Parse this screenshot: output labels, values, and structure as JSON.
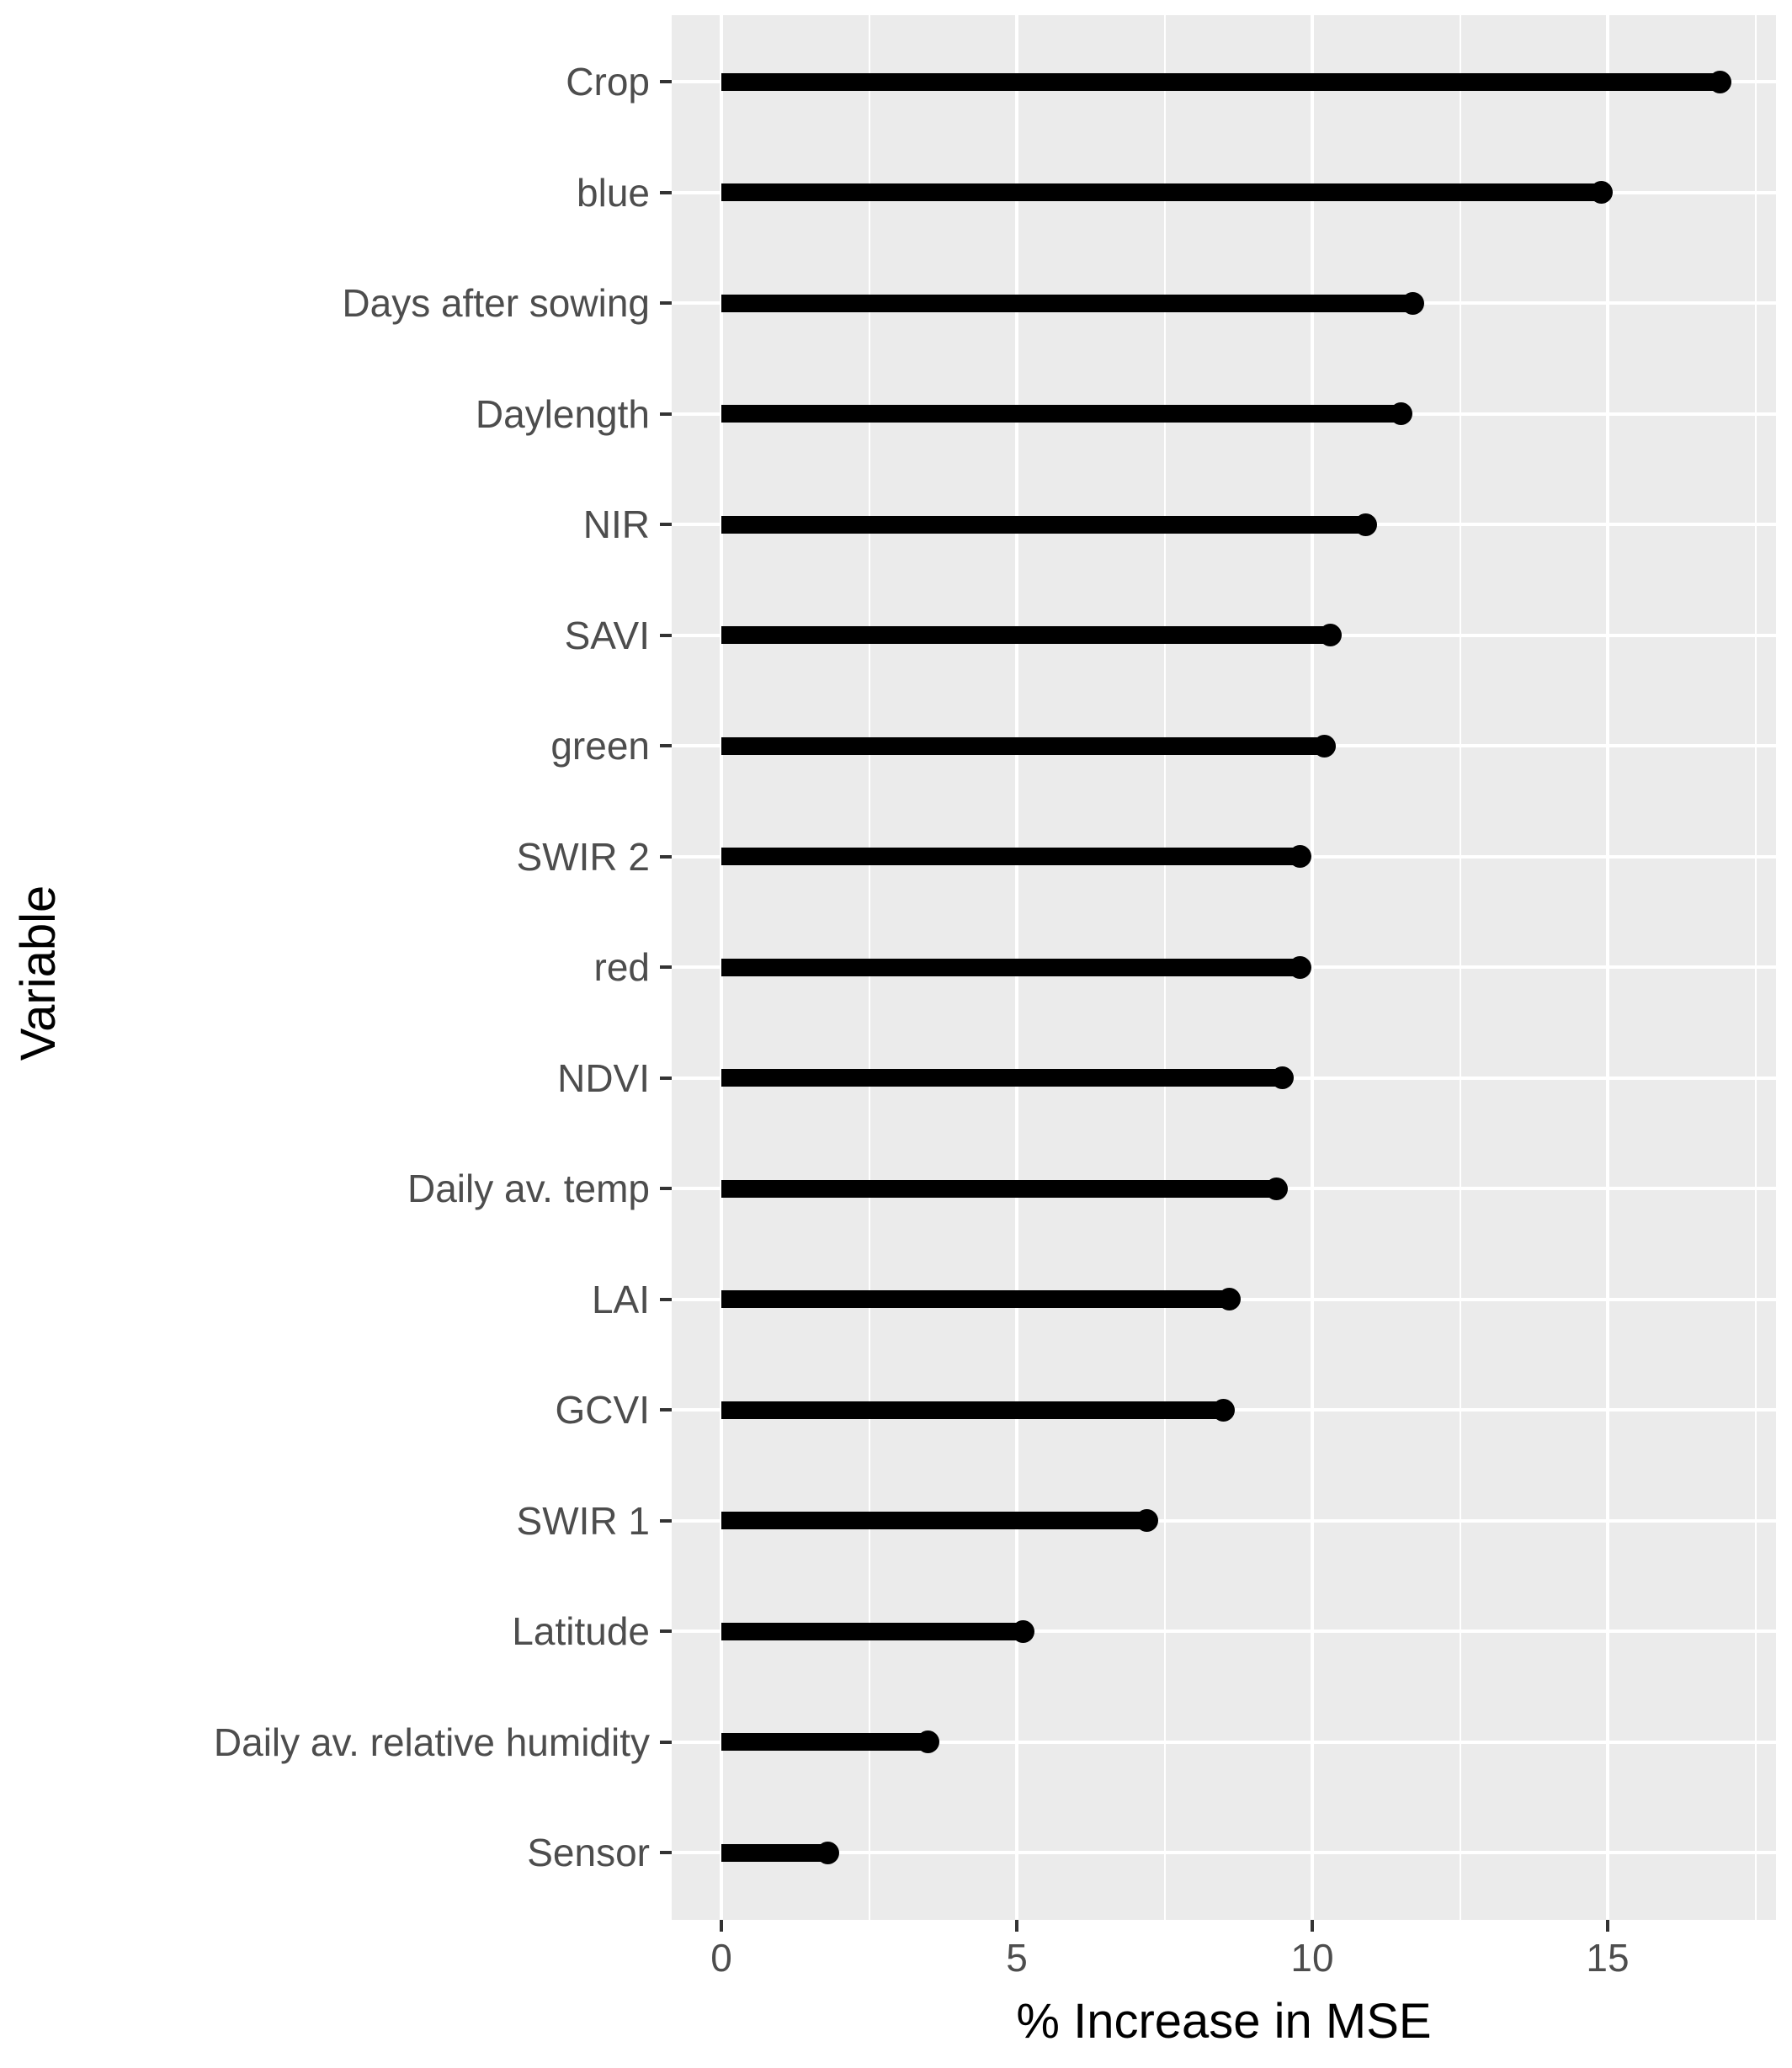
{
  "chart_data": {
    "type": "bar",
    "orientation": "horizontal",
    "title": "",
    "xlabel": "% Increase in MSE",
    "ylabel": "Variable",
    "rows": [
      {
        "label": "Crop",
        "value": 16.9
      },
      {
        "label": "blue",
        "value": 14.9
      },
      {
        "label": "Days after sowing",
        "value": 11.7
      },
      {
        "label": "Daylength",
        "value": 11.5
      },
      {
        "label": "NIR",
        "value": 10.9
      },
      {
        "label": "SAVI",
        "value": 10.3
      },
      {
        "label": "green",
        "value": 10.2
      },
      {
        "label": "SWIR 2",
        "value": 9.8
      },
      {
        "label": "red",
        "value": 9.8
      },
      {
        "label": "NDVI",
        "value": 9.5
      },
      {
        "label": "Daily av. temp",
        "value": 9.4
      },
      {
        "label": "LAI",
        "value": 8.6
      },
      {
        "label": "GCVI",
        "value": 8.5
      },
      {
        "label": "SWIR 1",
        "value": 7.2
      },
      {
        "label": "Latitude",
        "value": 5.1
      },
      {
        "label": "Daily av. relative humidity",
        "value": 3.5
      },
      {
        "label": "Sensor",
        "value": 1.8
      }
    ],
    "x_axis": {
      "tick_labels": [
        "0",
        "5",
        "10",
        "15"
      ],
      "major_ticks": [
        0,
        5,
        10,
        15
      ],
      "minor_gridlines": [
        2.5,
        7.5,
        12.5,
        17.5
      ],
      "range": [
        -0.85,
        17.85
      ]
    },
    "grid": "white major+minor vertical, white major horizontal per category",
    "legend": false,
    "colors": {
      "bar": "#000000",
      "panel_bg": "#EBEBEB",
      "gridline": "#FFFFFF",
      "tick_label": "#4D4D4D",
      "axis_title": "#000000",
      "tick_mark": "#333333"
    }
  }
}
